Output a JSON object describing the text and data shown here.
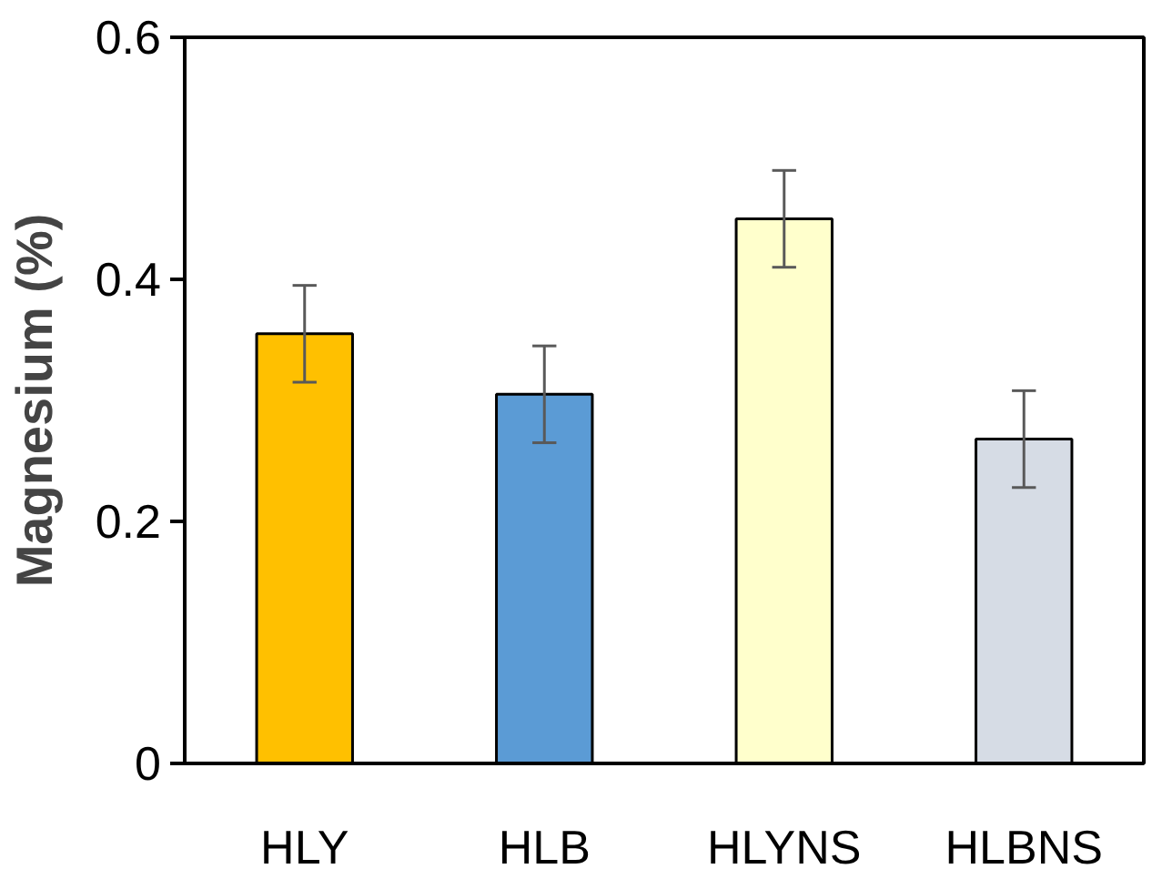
{
  "chart_data": {
    "type": "bar",
    "ylabel": "Magnesium (%)",
    "categories": [
      "HLY",
      "HLB",
      "HLYNS",
      "HLBNS"
    ],
    "values": [
      0.355,
      0.305,
      0.45,
      0.268
    ],
    "colors": [
      "#ffc000",
      "#5b9bd5",
      "#ffffcc",
      "#d6dce5"
    ],
    "errors": [
      0.04,
      0.04,
      0.04,
      0.04
    ],
    "ylim": [
      0,
      0.6
    ],
    "yticks": [
      0,
      {
        "value": 0.2,
        "label": "0.2"
      },
      {
        "value": 0.4,
        "label": "0.4"
      },
      {
        "value": 0.6,
        "label": "0.6"
      }
    ],
    "grid": false
  }
}
